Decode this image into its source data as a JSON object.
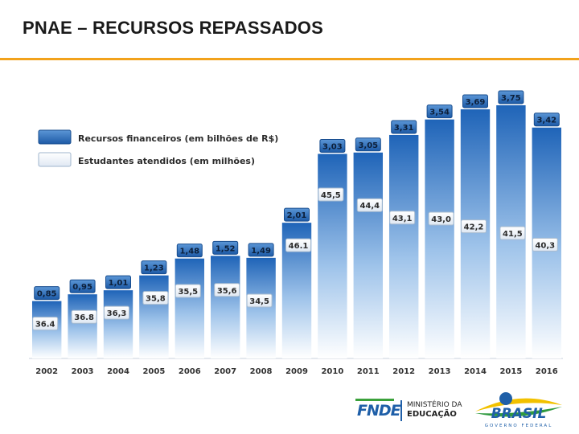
{
  "title": "PNAE – RECURSOS REPASSADOS",
  "colors": {
    "accent_rule": "#f2a21b",
    "resources_box": "#2e6db4",
    "students_box": "#f4f8fc",
    "bar_top": "#1f64b8",
    "bar_bottom": "#ffffff"
  },
  "legend": [
    {
      "label": "Recursos financeiros (em bilhões de R$)",
      "style": "dark-blue-box"
    },
    {
      "label": "Estudantes atendidos (em milhões)",
      "style": "light-box"
    }
  ],
  "chart_data": {
    "type": "bar",
    "categories": [
      "2002",
      "2003",
      "2004",
      "2005",
      "2006",
      "2007",
      "2008",
      "2009",
      "2010",
      "2011",
      "2012",
      "2013",
      "2014",
      "2015",
      "2016"
    ],
    "series": [
      {
        "name": "Recursos financeiros (em bilhões de R$)",
        "values": [
          0.85,
          0.95,
          1.01,
          1.23,
          1.48,
          1.52,
          1.49,
          2.01,
          3.03,
          3.05,
          3.31,
          3.54,
          3.69,
          3.75,
          3.42
        ],
        "labels": [
          "0,85",
          "0,95",
          "1,01",
          "1,23",
          "1,48",
          "1,52",
          "1,49",
          "2,01",
          "3,03",
          "3,05",
          "3,31",
          "3,54",
          "3,69",
          "3,75",
          "3,42"
        ]
      },
      {
        "name": "Estudantes atendidos (em milhões)",
        "values": [
          36.4,
          36.8,
          36.3,
          35.8,
          35.5,
          35.6,
          34.5,
          46.1,
          45.5,
          44.4,
          43.1,
          43.0,
          42.2,
          41.5,
          40.3
        ],
        "labels": [
          "36.4",
          "36.8",
          "36,3",
          "35,8",
          "35,5",
          "35,6",
          "34,5",
          "46.1",
          "45,5",
          "44,4",
          "43,1",
          "43,0",
          "42,2",
          "41,5",
          "40,3"
        ]
      }
    ],
    "ylim": [
      0,
      4.0
    ],
    "grid": false,
    "legend_position": "top-left"
  },
  "logos": {
    "fnde": "FNDE",
    "ministry_line1": "MINISTÉRIO DA",
    "ministry_line2": "EDUCAÇÃO",
    "brasil": "BRASIL",
    "brasil_sub": "GOVERNO FEDERAL"
  }
}
